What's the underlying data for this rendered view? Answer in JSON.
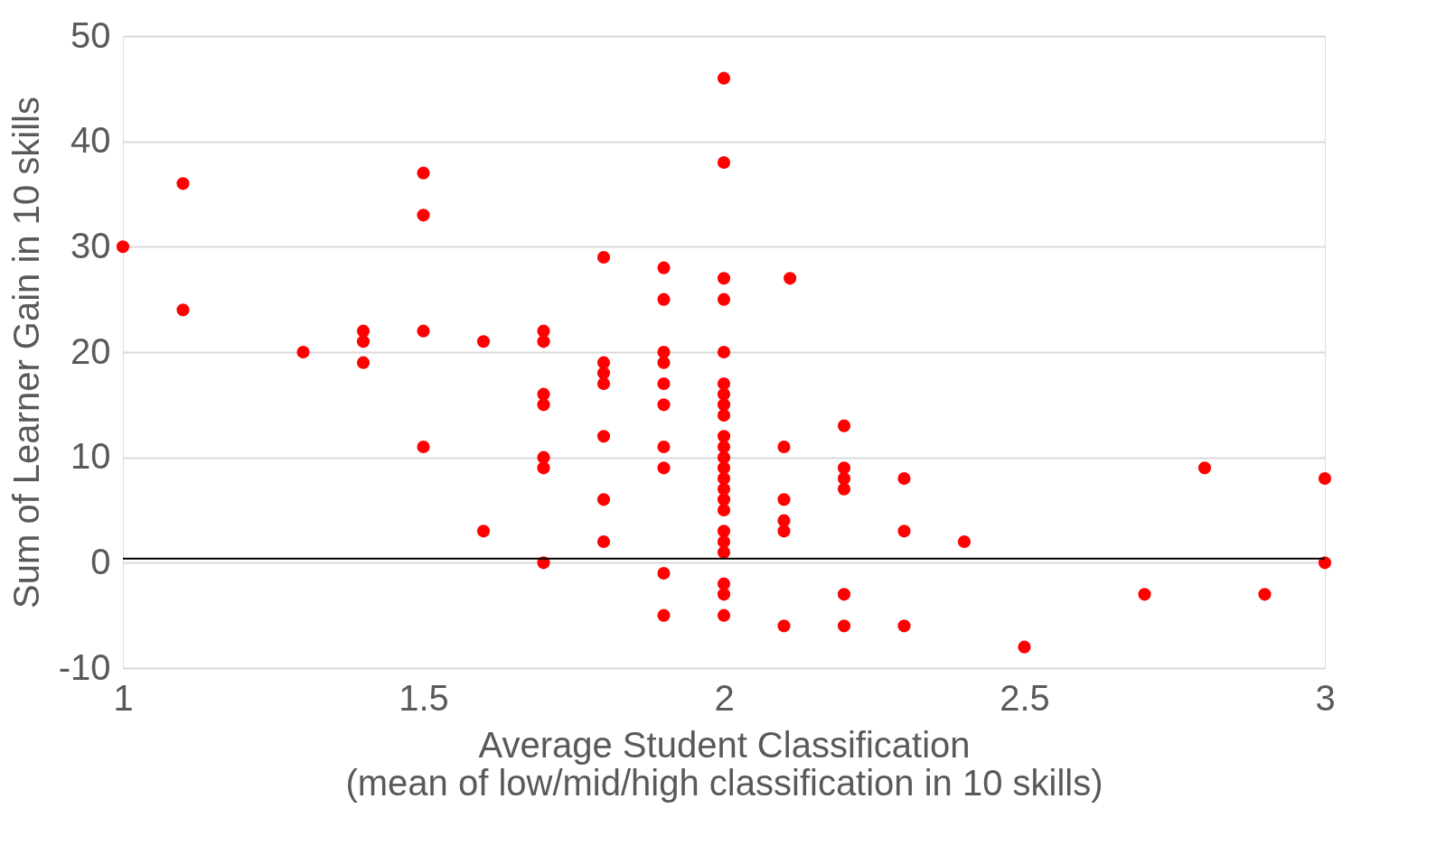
{
  "chart_data": {
    "type": "scatter",
    "xlabel": "Average Student Classification\n(mean of low/mid/high classification in 10 skills)",
    "ylabel": "Sum of Learner Gain in 10 skills",
    "series": [
      {
        "color": "#ff0000",
        "x": [
          1,
          1.1,
          1.1,
          1.3,
          1.4,
          1.4,
          1.4,
          1.5,
          1.5,
          1.5,
          1.5,
          1.6,
          1.6,
          1.7,
          1.7,
          1.7,
          1.7,
          1.7,
          1.7,
          1.7,
          1.8,
          1.8,
          1.8,
          1.8,
          1.8,
          1.8,
          1.8,
          1.9,
          1.9,
          1.9,
          1.9,
          1.9,
          1.9,
          1.9,
          1.9,
          1.9,
          1.9,
          2,
          2,
          2,
          2,
          2,
          2,
          2,
          2,
          2,
          2,
          2,
          2,
          2,
          2,
          2,
          2,
          2,
          2,
          2,
          2,
          2,
          2,
          2,
          2.11,
          2.1,
          2.1,
          2.1,
          2.1,
          2.1,
          2.2,
          2.2,
          2.2,
          2.2,
          2.2,
          2.2,
          2.3,
          2.3,
          2.3,
          2.4,
          2.5,
          2.7,
          2.8,
          2.9,
          3,
          3
        ],
        "values": [
          30,
          36,
          24,
          20,
          22,
          21,
          19,
          37,
          33,
          22,
          11,
          21,
          3,
          22,
          21,
          16,
          15,
          10,
          9,
          0,
          29,
          19,
          18,
          17,
          12,
          6,
          2,
          28,
          25,
          20,
          19,
          17,
          15,
          11,
          9,
          -1,
          -5,
          46,
          38,
          27,
          25,
          20,
          17,
          16,
          15,
          14,
          12,
          11,
          10,
          9,
          8,
          7,
          6,
          5,
          3,
          2,
          1,
          -2,
          -3,
          -5,
          27,
          11,
          6,
          4,
          3,
          -6,
          13,
          9,
          8,
          7,
          -3,
          -6,
          8,
          3,
          -6,
          2,
          -8,
          -3,
          9,
          -3,
          8,
          0
        ]
      }
    ],
    "xlim": [
      1,
      3
    ],
    "xticks": [
      1,
      1.5,
      2,
      2.5,
      3
    ],
    "ylim": [
      -10,
      50
    ],
    "yticks": [
      -10,
      0,
      10,
      20,
      30,
      40,
      50
    ],
    "grid": "y",
    "marker": "circle",
    "ref_lines": [
      {
        "axis": "y",
        "value": 0.4,
        "color": "#000000"
      }
    ]
  }
}
